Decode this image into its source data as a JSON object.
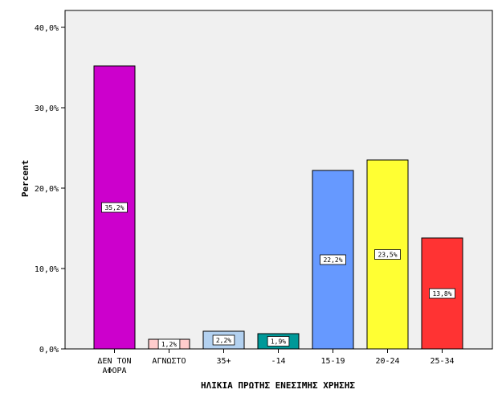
{
  "chart_data": {
    "type": "bar",
    "title": "",
    "xlabel": "ΗΛΙΚΙΑ ΠΡΩΤΗΣ ΕΝΕΣΙΜΗΣ ΧΡΗΣΗΣ",
    "ylabel": "Percent",
    "ylim": [
      0,
      40
    ],
    "yticks": [
      0,
      10,
      20,
      30,
      40
    ],
    "ytick_labels": [
      "0,0%",
      "10,0%",
      "20,0%",
      "30,0%",
      "40,0%"
    ],
    "categories": [
      [
        "ΔΕΝ ΤΟΝ",
        "ΑΦΟΡΑ"
      ],
      [
        "ΑΓΝΩΣΤΟ"
      ],
      [
        "35+"
      ],
      [
        "-14"
      ],
      [
        "15-19"
      ],
      [
        "20-24"
      ],
      [
        "25-34"
      ]
    ],
    "values": [
      35.2,
      1.2,
      2.2,
      1.9,
      22.2,
      23.5,
      13.8
    ],
    "data_labels": [
      "35,2%",
      "1,2%",
      "2,2%",
      "1,9%",
      "22,2%",
      "23,5%",
      "13,8%"
    ],
    "colors": [
      "#cc00cc",
      "#ffcccc",
      "#b3d1f0",
      "#009999",
      "#6699ff",
      "#ffff33",
      "#ff3333"
    ],
    "plot_background": "#f0f0f0",
    "grid": false,
    "legend": "none"
  }
}
